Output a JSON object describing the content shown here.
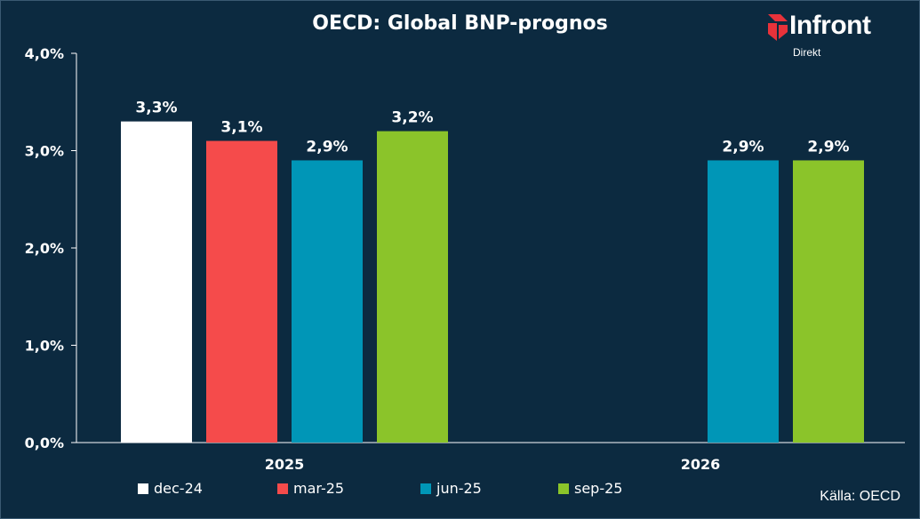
{
  "title": "OECD: Global BNP-prognos",
  "logo": {
    "word": "Infront",
    "sub": "Direkt"
  },
  "source_label": "Källa:",
  "source_value": "OECD",
  "colors": {
    "background": "#0c2a40",
    "axis": "#ffffff",
    "logo_mark": "#e8323a"
  },
  "chart_data": {
    "type": "bar",
    "title": "OECD: Global BNP-prognos",
    "xlabel": "",
    "ylabel": "",
    "categories": [
      "2025",
      "2026"
    ],
    "ylim": [
      0,
      4
    ],
    "yticks": [
      0,
      1,
      2,
      3,
      4
    ],
    "ytick_labels": [
      "0,0%",
      "1,0%",
      "2,0%",
      "3,0%",
      "4,0%"
    ],
    "grid": false,
    "legend_position": "bottom",
    "series": [
      {
        "name": "dec-24",
        "color": "#ffffff",
        "values": [
          3.3,
          null
        ],
        "labels": [
          "3,3%",
          ""
        ]
      },
      {
        "name": "mar-25",
        "color": "#f54b4b",
        "values": [
          3.1,
          null
        ],
        "labels": [
          "3,1%",
          ""
        ]
      },
      {
        "name": "jun-25",
        "color": "#0096b7",
        "values": [
          2.9,
          2.9
        ],
        "labels": [
          "2,9%",
          "2,9%"
        ]
      },
      {
        "name": "sep-25",
        "color": "#8bc42a",
        "values": [
          3.2,
          2.9
        ],
        "labels": [
          "3,2%",
          "2,9%"
        ]
      }
    ]
  }
}
